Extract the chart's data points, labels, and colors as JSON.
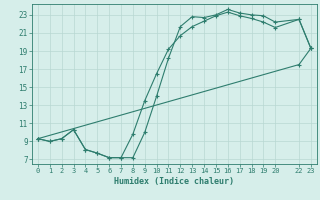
{
  "xlabel": "Humidex (Indice chaleur)",
  "ylabel": "",
  "line_color": "#2e7d6e",
  "bg_color": "#d6eeea",
  "grid_color": "#b8d8d2",
  "text_color": "#2e7d6e",
  "xlim": [
    -0.5,
    23.5
  ],
  "ylim": [
    6.5,
    24.2
  ],
  "xticks": [
    0,
    1,
    2,
    3,
    4,
    5,
    6,
    7,
    8,
    9,
    10,
    11,
    12,
    13,
    14,
    15,
    16,
    17,
    18,
    19,
    20,
    22,
    23
  ],
  "yticks": [
    7,
    9,
    11,
    13,
    15,
    17,
    19,
    21,
    23
  ],
  "line1_x": [
    0,
    1,
    2,
    3,
    4,
    5,
    6,
    7,
    8,
    9,
    10,
    11,
    12,
    13,
    14,
    15,
    16,
    17,
    18,
    19,
    20,
    22,
    23
  ],
  "line1_y": [
    9.3,
    9.0,
    9.3,
    10.3,
    8.1,
    7.7,
    7.2,
    7.2,
    7.2,
    10.0,
    14.0,
    18.2,
    21.7,
    22.8,
    22.7,
    23.0,
    23.6,
    23.2,
    23.0,
    22.9,
    22.2,
    22.5,
    19.3
  ],
  "line2_x": [
    0,
    1,
    2,
    3,
    4,
    5,
    6,
    7,
    8,
    9,
    10,
    11,
    12,
    13,
    14,
    15,
    16,
    17,
    18,
    19,
    20,
    22,
    23
  ],
  "line2_y": [
    9.3,
    9.0,
    9.3,
    10.3,
    8.1,
    7.7,
    7.2,
    7.2,
    9.8,
    13.5,
    16.5,
    19.2,
    20.7,
    21.7,
    22.3,
    22.9,
    23.3,
    22.9,
    22.6,
    22.2,
    21.6,
    22.5,
    19.3
  ],
  "line3_x": [
    0,
    22,
    23
  ],
  "line3_y": [
    9.3,
    17.5,
    19.3
  ]
}
